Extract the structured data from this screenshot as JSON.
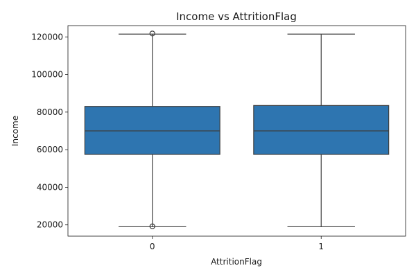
{
  "chart_data": {
    "type": "boxplot",
    "title": "Income vs AttritionFlag",
    "xlabel": "AttritionFlag",
    "ylabel": "Income",
    "categories": [
      "0",
      "1"
    ],
    "ylim": [
      14000,
      126000
    ],
    "yticks": [
      20000,
      40000,
      60000,
      80000,
      100000,
      120000
    ],
    "ytick_labels": [
      "20000",
      "40000",
      "60000",
      "80000",
      "100000",
      "120000"
    ],
    "boxes": [
      {
        "category": "0",
        "whisker_low": 19000,
        "q1": 57500,
        "median": 70000,
        "q3": 83000,
        "whisker_high": 121500,
        "outliers": [
          19200,
          121800
        ]
      },
      {
        "category": "1",
        "whisker_low": 19000,
        "q1": 57500,
        "median": 70000,
        "q3": 83500,
        "whisker_high": 121500,
        "outliers": []
      }
    ],
    "box_color": "#2e75b0",
    "line_color": "#3d3d3d",
    "grid": false
  }
}
